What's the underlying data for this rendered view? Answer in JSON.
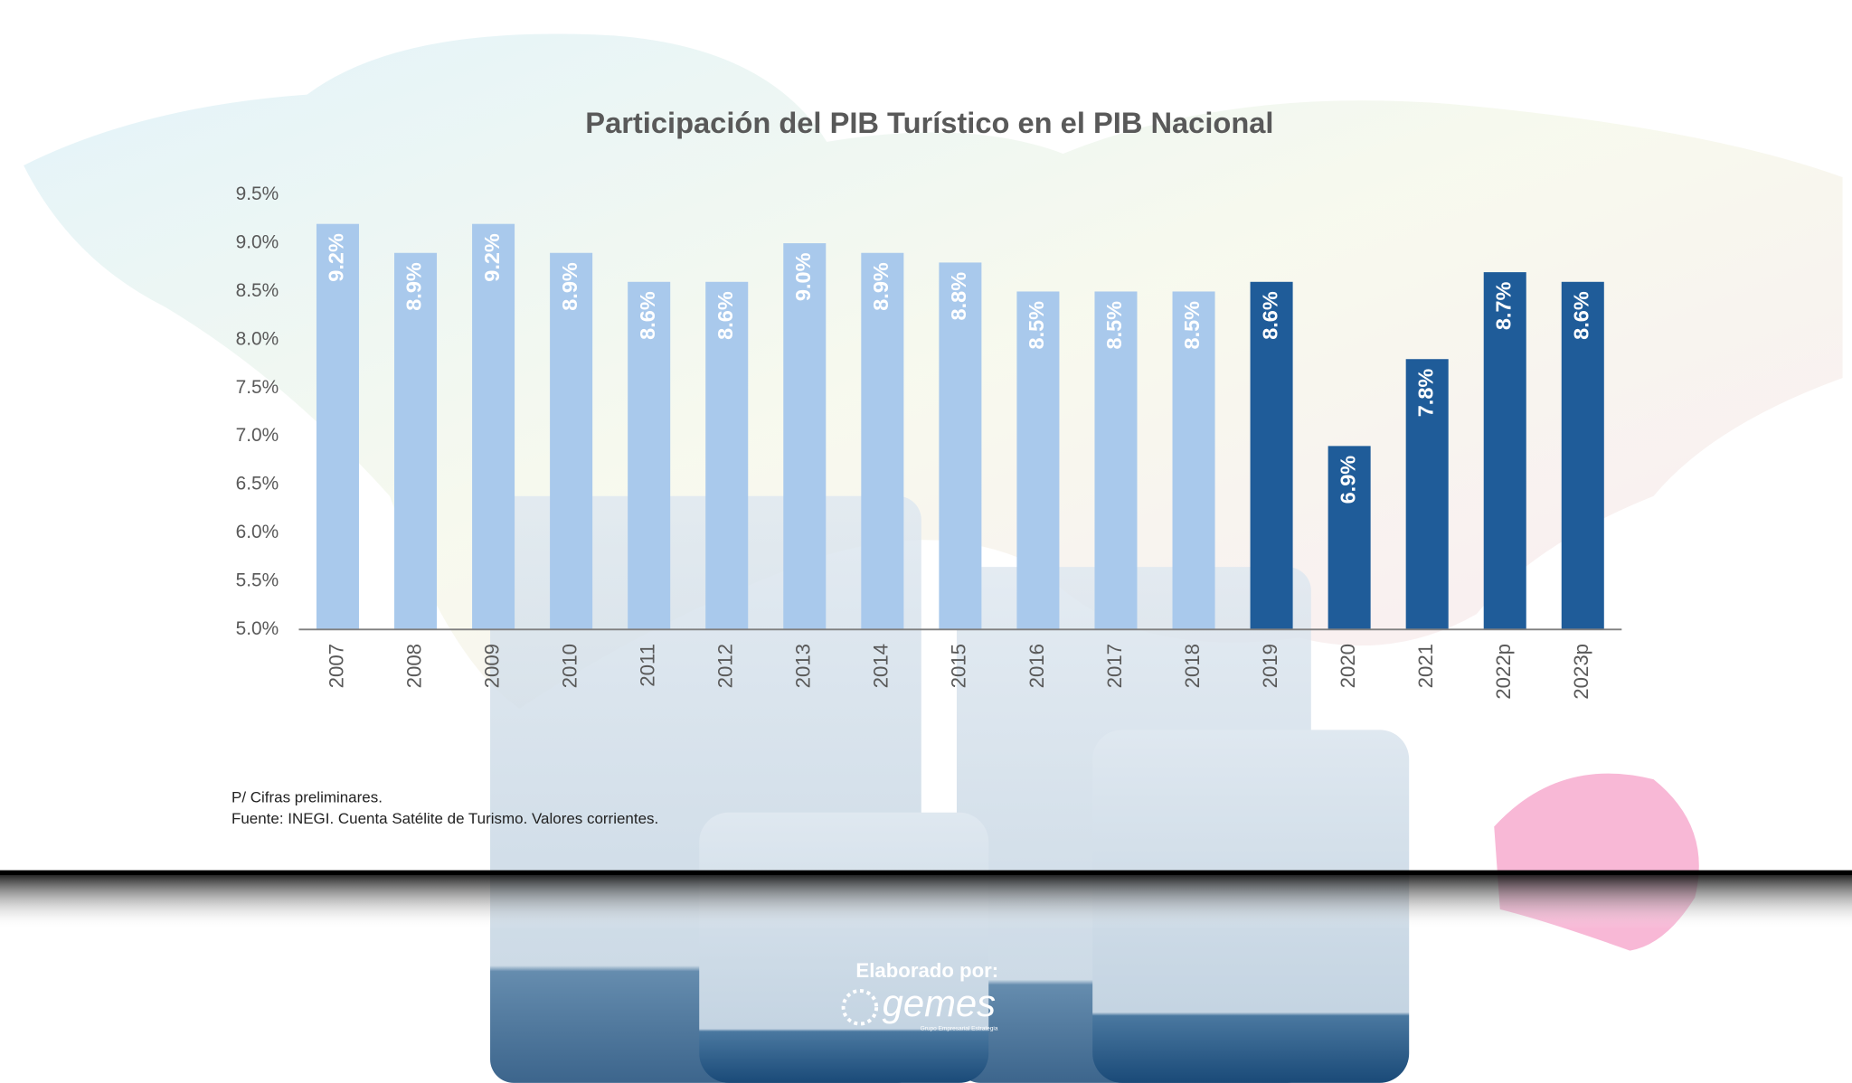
{
  "chart_data": {
    "type": "bar",
    "title": "Participación del PIB Turístico en el PIB Nacional",
    "categories": [
      "2007",
      "2008",
      "2009",
      "2010",
      "2011",
      "2012",
      "2013",
      "2014",
      "2015",
      "2016",
      "2017",
      "2018",
      "2019",
      "2020",
      "2021",
      "2022p",
      "2023p"
    ],
    "values": [
      9.2,
      8.9,
      9.2,
      8.9,
      8.6,
      8.6,
      9.0,
      8.9,
      8.8,
      8.5,
      8.5,
      8.5,
      8.6,
      6.9,
      7.8,
      8.7,
      8.6
    ],
    "value_labels": [
      "9.2%",
      "8.9%",
      "9.2%",
      "8.9%",
      "8.6%",
      "8.6%",
      "9.0%",
      "8.9%",
      "8.8%",
      "8.5%",
      "8.5%",
      "8.5%",
      "8.6%",
      "6.9%",
      "7.8%",
      "8.7%",
      "8.6%"
    ],
    "colors": [
      "#a9c9ec",
      "#a9c9ec",
      "#a9c9ec",
      "#a9c9ec",
      "#a9c9ec",
      "#a9c9ec",
      "#a9c9ec",
      "#a9c9ec",
      "#a9c9ec",
      "#a9c9ec",
      "#a9c9ec",
      "#a9c9ec",
      "#1f5c99",
      "#1f5c99",
      "#1f5c99",
      "#1f5c99",
      "#1f5c99"
    ],
    "ylim": [
      5,
      9.5
    ],
    "yticks": [
      {
        "value": 5,
        "label": "5.0%"
      },
      {
        "value": 5.5,
        "label": "5.5%"
      },
      {
        "value": 6,
        "label": "6.0%"
      },
      {
        "value": 6.5,
        "label": "6.5%"
      },
      {
        "value": 7,
        "label": "7.0%"
      },
      {
        "value": 7.5,
        "label": "7.5%"
      },
      {
        "value": 8,
        "label": "8.0%"
      },
      {
        "value": 8.5,
        "label": "8.5%"
      },
      {
        "value": 9,
        "label": "9.0%"
      },
      {
        "value": 9.5,
        "label": "9.5%"
      }
    ],
    "notes": [
      "P/ Cifras preliminares.",
      "Fuente: INEGI. Cuenta Satélite de Turismo. Valores corrientes."
    ]
  },
  "credit": {
    "label": "Elaborado por:",
    "brand": "gemes",
    "tagline": "Grupo Empresarial Estrategia"
  }
}
